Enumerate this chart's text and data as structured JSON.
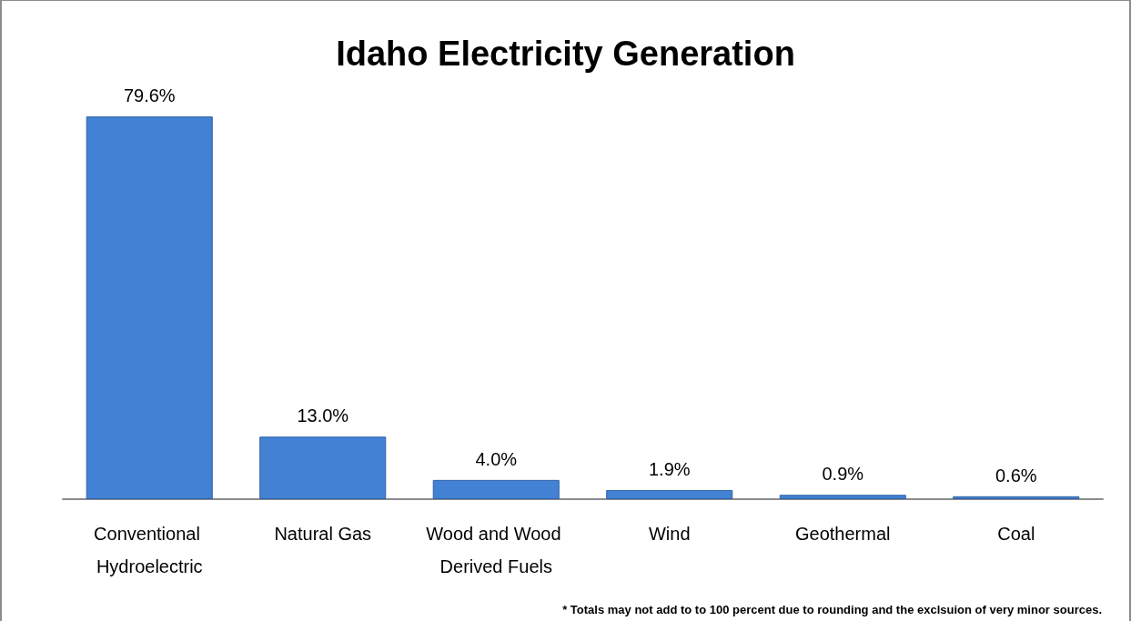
{
  "chart_data": {
    "type": "bar",
    "title": "Idaho Electricity Generation",
    "categories": [
      "Conventional Hydroelectric",
      "Natural Gas",
      "Wood and Wood Derived Fuels",
      "Wind",
      "Geothermal",
      "Coal"
    ],
    "values": [
      79.6,
      13.0,
      4.0,
      1.9,
      0.9,
      0.6
    ],
    "value_labels": [
      "79.6%",
      "13.0%",
      "4.0%",
      "1.9%",
      "0.9%",
      "0.6%"
    ],
    "color": "#4281d4",
    "annotations": [
      "* Totals may not add to to 100 percent due to rounding and the exclsuion of very minor sources."
    ],
    "grid": false,
    "tick_labels": "x"
  }
}
